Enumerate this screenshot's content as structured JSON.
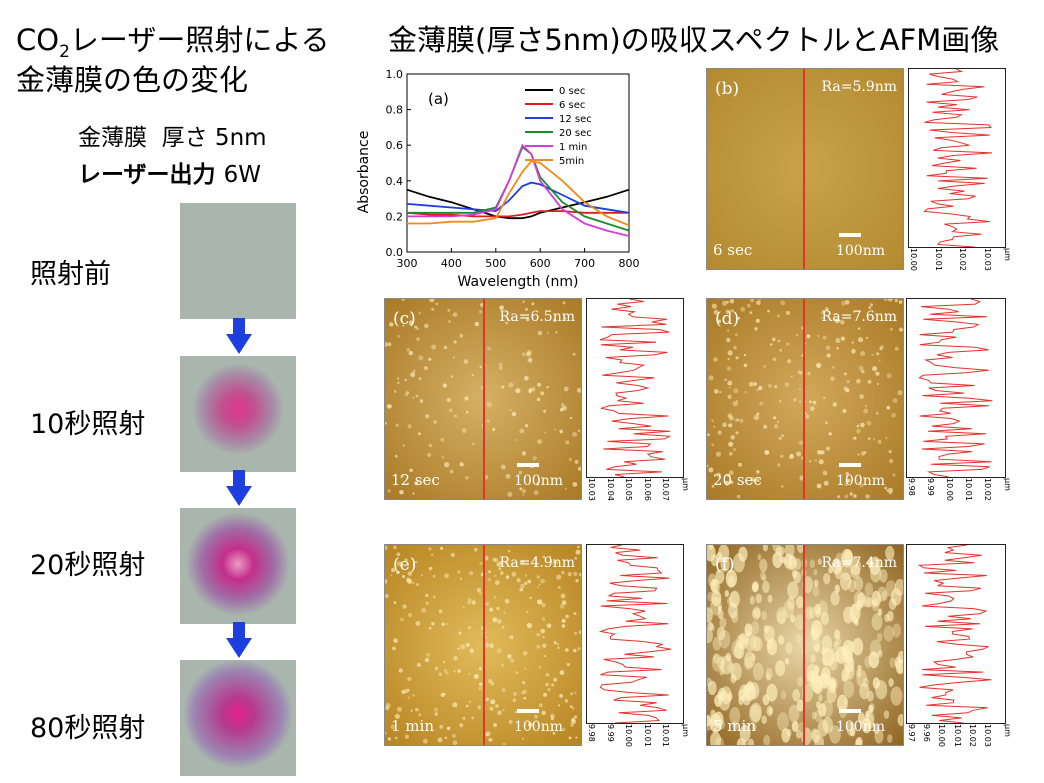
{
  "left_title": {
    "line1_pre": "CO",
    "line1_sub": "2",
    "line1_post": "レーザー照射による",
    "line2": "金薄膜の色の変化"
  },
  "right_title": "金薄膜(厚さ5nm)の吸収スペクトルとAFM画像",
  "conditions": {
    "line1_label": "金薄膜",
    "line1_value": "厚さ 5nm",
    "line2_label": "レーザー出力",
    "line2_value": "6W"
  },
  "steps": [
    "照射前",
    "10秒照射",
    "20秒照射",
    "80秒照射"
  ],
  "colors": {
    "arrow": "#1f3ee0",
    "sample_bg": "#a9b6ae",
    "red_line": "#e5322c",
    "afm_bg": "#b8862a"
  },
  "chart_data": {
    "type": "line",
    "panel_label": "(a)",
    "xlabel": "Wavelength (nm)",
    "ylabel": "Absorbance",
    "xlim": [
      300,
      800
    ],
    "ylim": [
      0,
      1.0
    ],
    "xticks": [
      "300",
      "400",
      "500",
      "600",
      "700",
      "800"
    ],
    "yticks": [
      "0.0",
      "0.2",
      "0.4",
      "0.6",
      "0.8",
      "1.0"
    ],
    "x": [
      300,
      350,
      400,
      450,
      500,
      530,
      560,
      580,
      600,
      650,
      700,
      750,
      800
    ],
    "series": [
      {
        "name": "0 sec",
        "color": "#000000",
        "values": [
          0.35,
          0.31,
          0.28,
          0.24,
          0.2,
          0.19,
          0.19,
          0.2,
          0.22,
          0.25,
          0.28,
          0.31,
          0.35
        ]
      },
      {
        "name": "6 sec",
        "color": "#e41a1c",
        "values": [
          0.22,
          0.21,
          0.21,
          0.2,
          0.2,
          0.2,
          0.21,
          0.22,
          0.23,
          0.23,
          0.22,
          0.22,
          0.22
        ]
      },
      {
        "name": "12 sec",
        "color": "#1f3ee0",
        "values": [
          0.27,
          0.26,
          0.25,
          0.24,
          0.23,
          0.29,
          0.37,
          0.39,
          0.38,
          0.32,
          0.26,
          0.24,
          0.22
        ]
      },
      {
        "name": "20 sec",
        "color": "#1a8a2a",
        "values": [
          0.22,
          0.22,
          0.22,
          0.22,
          0.25,
          0.4,
          0.59,
          0.55,
          0.42,
          0.28,
          0.2,
          0.16,
          0.12
        ]
      },
      {
        "name": "1 min",
        "color": "#d63cd6",
        "values": [
          0.2,
          0.2,
          0.2,
          0.21,
          0.24,
          0.4,
          0.6,
          0.55,
          0.4,
          0.24,
          0.16,
          0.12,
          0.09
        ]
      },
      {
        "name": "5min",
        "color": "#f08a1c",
        "values": [
          0.16,
          0.16,
          0.17,
          0.17,
          0.19,
          0.33,
          0.45,
          0.51,
          0.5,
          0.4,
          0.28,
          0.2,
          0.15
        ]
      }
    ]
  },
  "afm_panels": [
    {
      "label": "(b)",
      "ra": "Ra=5.9nm",
      "time": "6 sec",
      "scale": "100nm",
      "ticks": [
        "10.00",
        "10.01",
        "10.02",
        "10.03"
      ],
      "unit": "μm"
    },
    {
      "label": "(c)",
      "ra": "Ra=6.5nm",
      "time": "12 sec",
      "scale": "100nm",
      "ticks": [
        "10.03",
        "10.04",
        "10.05",
        "10.06",
        "10.07"
      ],
      "unit": "μm"
    },
    {
      "label": "(d)",
      "ra": "Ra=7.6nm",
      "time": "20 sec",
      "scale": "100nm",
      "ticks": [
        "9.98",
        "9.99",
        "10.00",
        "10.01",
        "10.02"
      ],
      "unit": "μm"
    },
    {
      "label": "(e)",
      "ra": "Ra=4.9nm",
      "time": "1 min",
      "scale": "100nm",
      "ticks": [
        "9.98",
        "9.99",
        "10.00",
        "10.01",
        "10.01"
      ],
      "unit": "μm"
    },
    {
      "label": "(f)",
      "ra": "Ra=7.4nm",
      "time": "5 min",
      "scale": "100nm",
      "ticks": [
        "9.97",
        "9.96",
        "10.00",
        "10.01",
        "10.02",
        "10.03"
      ],
      "unit": "μm"
    }
  ]
}
